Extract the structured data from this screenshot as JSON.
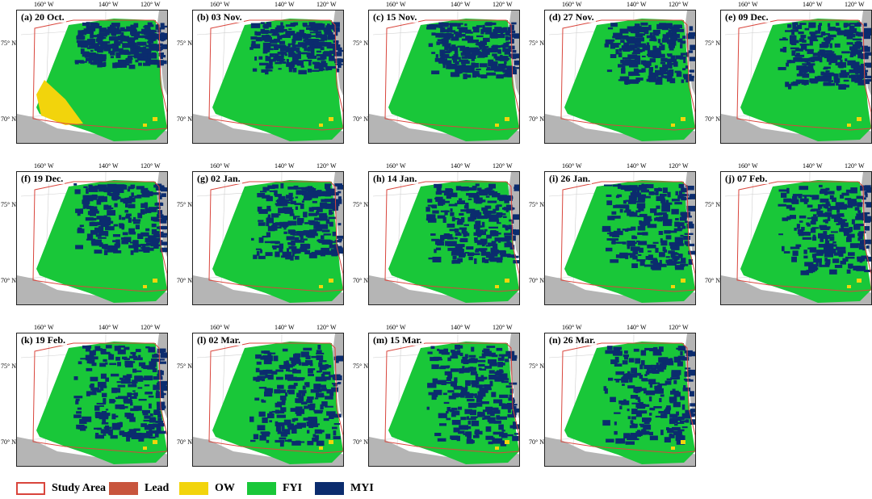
{
  "tick_labels": {
    "lon": [
      "160° W",
      "140° W",
      "120° W"
    ],
    "lat": [
      "75° N",
      "70° N"
    ]
  },
  "panels": [
    {
      "label": "(a) 20 Oct."
    },
    {
      "label": "(b) 03 Nov."
    },
    {
      "label": "(c) 15 Nov."
    },
    {
      "label": "(d) 27 Nov."
    },
    {
      "label": "(e) 09 Dec."
    },
    {
      "label": "(f) 19 Dec."
    },
    {
      "label": "(g) 02 Jan."
    },
    {
      "label": "(h) 14 Jan."
    },
    {
      "label": "(i) 26 Jan."
    },
    {
      "label": "(j) 07 Feb."
    },
    {
      "label": "(k) 19 Feb."
    },
    {
      "label": "(l) 02 Mar."
    },
    {
      "label": "(m) 15 Mar."
    },
    {
      "label": "(n) 26 Mar."
    }
  ],
  "legend": [
    {
      "key": "study_area",
      "label": "Study Area",
      "color": "#ffffff",
      "border": "#d9453c"
    },
    {
      "key": "lead",
      "label": "Lead",
      "color": "#c8553d",
      "border": "#c8553d"
    },
    {
      "key": "ow",
      "label": "OW",
      "color": "#f2d40c",
      "border": "#f2d40c"
    },
    {
      "key": "fyi",
      "label": "FYI",
      "color": "#19c739",
      "border": "#19c739"
    },
    {
      "key": "myi",
      "label": "MYI",
      "color": "#0b2c6e",
      "border": "#0b2c6e"
    }
  ],
  "colors": {
    "land": "#b5b5b5",
    "ocean": "#ffffff",
    "graticule": "#cfcfcf"
  }
}
